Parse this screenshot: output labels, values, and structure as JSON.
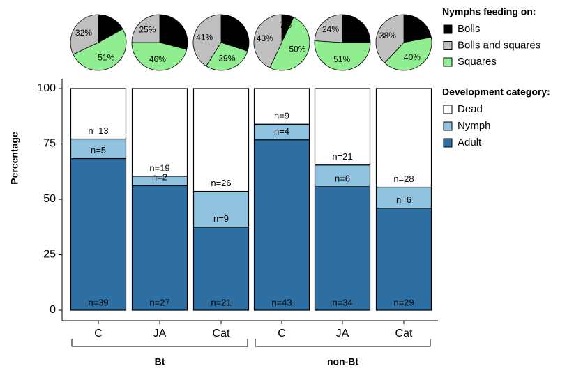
{
  "chart_data": [
    {
      "type": "stacked-bar",
      "y_label": "Percentage",
      "groups": [
        {
          "label": "Bt",
          "categories": [
            "C",
            "JA",
            "Cat"
          ]
        },
        {
          "label": "non-Bt",
          "categories": [
            "C",
            "JA",
            "Cat"
          ]
        }
      ],
      "legend_title": "Development category:",
      "series": [
        {
          "name": "Adult",
          "color": "#2e6fa3",
          "values": [
            68.4,
            56.2,
            37.5,
            76.8,
            55.7,
            46.0
          ],
          "count_labels": [
            "n=39",
            "n=27",
            "n=21",
            "n=43",
            "n=34",
            "n=29"
          ]
        },
        {
          "name": "Nymph",
          "color": "#8fc3df",
          "values": [
            8.8,
            4.2,
            16.1,
            7.1,
            9.8,
            9.5
          ],
          "count_labels": [
            "n=5",
            "n=2",
            "n=9",
            "n=4",
            "n=6",
            "n=6"
          ]
        },
        {
          "name": "Dead",
          "color": "#ffffff",
          "values": [
            22.8,
            39.6,
            46.4,
            16.1,
            34.5,
            44.5
          ],
          "count_labels": [
            "n=13",
            "n=19",
            "n=26",
            "n=9",
            "n=21",
            "n=28"
          ]
        }
      ],
      "ylim": [
        0,
        100
      ],
      "yticks": [
        0,
        25,
        50,
        75,
        100
      ]
    },
    {
      "type": "pie",
      "legend_title": "Nymphs feeding on:",
      "categories": [
        "Bolls",
        "Bolls and squares",
        "Squares"
      ],
      "colors": [
        "#000000",
        "#bfbfbf",
        "#90ee90"
      ],
      "pies": [
        {
          "values": [
            17,
            32,
            51
          ],
          "value_labels": [
            "17%",
            "32%",
            "51%"
          ]
        },
        {
          "values": [
            29,
            25,
            46
          ],
          "value_labels": [
            "29%",
            "25%",
            "46%"
          ]
        },
        {
          "values": [
            30,
            41,
            29
          ],
          "value_labels": [
            "30%",
            "41%",
            "29%"
          ]
        },
        {
          "values": [
            7,
            43,
            50
          ],
          "value_labels": [
            "7%",
            "43%",
            "50%"
          ]
        },
        {
          "values": [
            25,
            24,
            51
          ],
          "value_labels": [
            "25%",
            "24%",
            "51%"
          ]
        },
        {
          "values": [
            22,
            38,
            40
          ],
          "value_labels": [
            "22%",
            "38%",
            "40%"
          ]
        }
      ]
    }
  ]
}
